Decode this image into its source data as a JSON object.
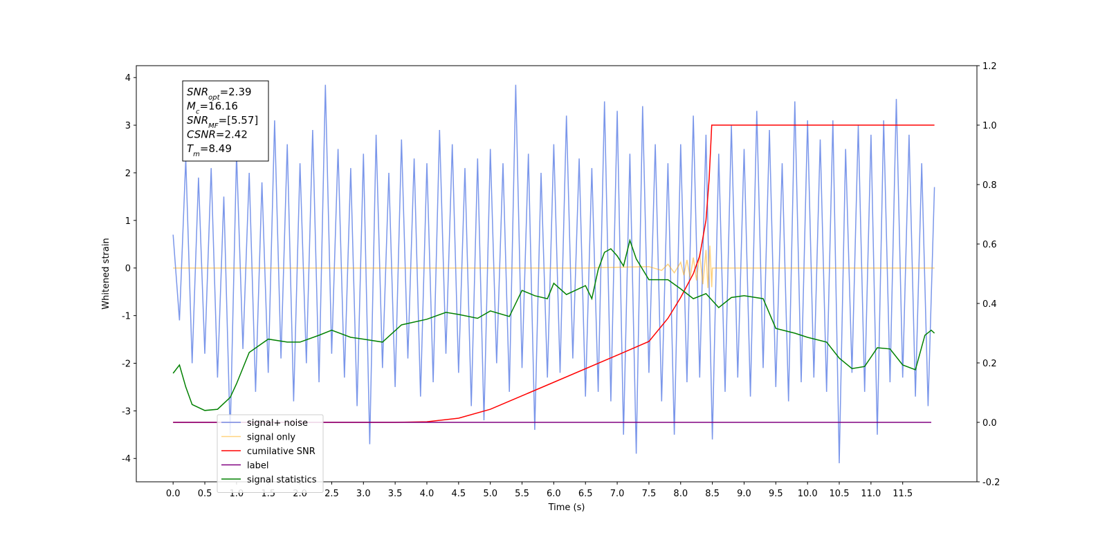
{
  "chart_data": {
    "type": "line",
    "xlabel": "Time (s)",
    "ylabel": "Whitened strain",
    "xlim": [
      -0.58,
      12.67
    ],
    "ylim": [
      -4.49,
      4.25
    ],
    "y2lim": [
      -0.2,
      1.2
    ],
    "xticks": [
      {
        "value": 0,
        "label": "0.0"
      },
      0.5,
      {
        "value": 1,
        "label": "1.0"
      },
      1.5,
      {
        "value": 2,
        "label": "2.0"
      },
      2.5,
      {
        "value": 3,
        "label": "3.0"
      },
      3.5,
      {
        "value": 4,
        "label": "4.0"
      },
      4.5,
      {
        "value": 5,
        "label": "5.0"
      },
      5.5,
      {
        "value": 6,
        "label": "6.0"
      },
      6.5,
      {
        "value": 7,
        "label": "7.0"
      },
      7.5,
      {
        "value": 8,
        "label": "8.0"
      },
      8.5,
      {
        "value": 9,
        "label": "9.0"
      },
      9.5,
      {
        "value": 10,
        "label": "10.0"
      },
      10.5,
      {
        "value": 11,
        "label": "11.0"
      },
      11.5
    ],
    "yticks": [
      -4,
      -3,
      -2,
      -1,
      0,
      1,
      2,
      3,
      4
    ],
    "y2ticks": [
      -0.2,
      {
        "value": 0,
        "label": "0.0"
      },
      0.2,
      0.4,
      0.6,
      0.8,
      {
        "value": 1,
        "label": "1.0"
      },
      1.2
    ],
    "legend": "lower left",
    "annotation": [
      {
        "base": "SNR",
        "sub": "opt",
        "text": "=2.39"
      },
      {
        "base": "M",
        "sub": "c",
        "text": "=16.16"
      },
      {
        "base": "SNR",
        "sub": "MF",
        "text": "=[5.57]"
      },
      {
        "base": "CSNR",
        "sub": "",
        "text": "=2.42"
      },
      {
        "base": "T",
        "sub": "m",
        "text": "=8.49"
      }
    ],
    "series": [
      {
        "name": "signal+ noise",
        "color": "#4169e1",
        "alpha": 0.7,
        "axis": "y",
        "x": [
          0,
          0.1,
          0.2,
          0.3,
          0.4,
          0.5,
          0.6,
          0.7,
          0.8,
          0.9,
          1,
          1.1,
          1.2,
          1.3,
          1.4,
          1.5,
          1.6,
          1.7,
          1.8,
          1.9,
          2,
          2.1,
          2.2,
          2.3,
          2.4,
          2.5,
          2.6,
          2.7,
          2.8,
          2.9,
          3,
          3.1,
          3.2,
          3.3,
          3.4,
          3.5,
          3.6,
          3.7,
          3.8,
          3.9,
          4,
          4.1,
          4.2,
          4.3,
          4.4,
          4.5,
          4.6,
          4.7,
          4.8,
          4.9,
          5,
          5.1,
          5.2,
          5.3,
          5.4,
          5.5,
          5.6,
          5.7,
          5.8,
          5.9,
          6,
          6.1,
          6.2,
          6.3,
          6.4,
          6.5,
          6.6,
          6.7,
          6.8,
          6.9,
          7,
          7.1,
          7.2,
          7.3,
          7.4,
          7.5,
          7.6,
          7.7,
          7.8,
          7.9,
          8,
          8.1,
          8.2,
          8.3,
          8.4,
          8.5,
          8.6,
          8.7,
          8.8,
          8.9,
          9,
          9.1,
          9.2,
          9.3,
          9.4,
          9.5,
          9.6,
          9.7,
          9.8,
          9.9,
          10,
          10.1,
          10.2,
          10.3,
          10.4,
          10.5,
          10.6,
          10.7,
          10.8,
          10.9,
          11,
          11.1,
          11.2,
          11.3,
          11.4,
          11.5,
          11.6,
          11.7,
          11.8,
          11.9,
          12
        ],
        "values": [
          0.7,
          -1.1,
          2.3,
          -2.0,
          1.9,
          -1.8,
          2.1,
          -2.3,
          1.5,
          -3.5,
          2.4,
          -1.7,
          2.0,
          -2.6,
          1.8,
          -2.2,
          3.1,
          -1.9,
          2.6,
          -2.8,
          2.2,
          -2.0,
          2.9,
          -2.4,
          3.85,
          -1.8,
          2.5,
          -2.3,
          2.1,
          -2.9,
          2.4,
          -3.7,
          2.8,
          -2.1,
          2.0,
          -2.5,
          2.7,
          -1.9,
          2.3,
          -2.7,
          2.2,
          -2.4,
          2.9,
          -1.8,
          2.6,
          -2.2,
          2.1,
          -2.9,
          2.3,
          -3.2,
          2.5,
          -2.0,
          2.2,
          -2.6,
          3.85,
          -2.1,
          2.4,
          -3.4,
          2.0,
          -2.3,
          2.6,
          -2.2,
          3.2,
          -1.9,
          2.3,
          -2.7,
          2.1,
          -2.6,
          3.5,
          -2.8,
          3.3,
          -3.5,
          2.4,
          -3.9,
          3.4,
          -2.2,
          2.6,
          -2.8,
          2.2,
          -3.5,
          2.6,
          -2.4,
          3.2,
          -2.3,
          2.8,
          -3.6,
          2.4,
          -2.6,
          3.0,
          -2.3,
          2.5,
          -2.7,
          3.3,
          -2.1,
          2.9,
          -2.5,
          2.2,
          -2.8,
          3.5,
          -2.4,
          3.1,
          -2.3,
          2.7,
          -2.6,
          3.1,
          -4.1,
          2.5,
          -2.2,
          3.0,
          -2.6,
          2.8,
          -3.5,
          3.1,
          -2.4,
          3.55,
          -2.3,
          2.8,
          -2.7,
          2.2,
          -2.9,
          1.7
        ]
      },
      {
        "name": "signal only",
        "color": "#ffa500",
        "alpha": 0.5,
        "axis": "y",
        "x": [
          0,
          6.5,
          7.5,
          7.7,
          7.8,
          7.9,
          8.0,
          8.05,
          8.1,
          8.15,
          8.2,
          8.25,
          8.3,
          8.35,
          8.4,
          8.43,
          8.46,
          8.49,
          8.5,
          12
        ],
        "values": [
          0,
          0,
          0.03,
          -0.05,
          0.08,
          -0.1,
          0.12,
          -0.15,
          0.17,
          -0.2,
          0.22,
          -0.26,
          0.3,
          -0.34,
          0.38,
          -0.42,
          0.47,
          -0.4,
          0,
          0
        ]
      },
      {
        "name": "cumilative SNR",
        "color": "#ff0000",
        "alpha": 1,
        "axis": "y2",
        "x": [
          0,
          3.5,
          4.0,
          4.5,
          5.0,
          6.0,
          7.0,
          7.5,
          7.8,
          8.0,
          8.2,
          8.3,
          8.4,
          8.45,
          8.49,
          8.5,
          12
        ],
        "values": [
          0,
          0,
          0.002,
          0.014,
          0.044,
          0.135,
          0.226,
          0.272,
          0.35,
          0.42,
          0.5,
          0.56,
          0.68,
          0.82,
          1.0,
          1.0,
          1.0
        ]
      },
      {
        "name": "label",
        "color": "#800080",
        "alpha": 1,
        "axis": "y2",
        "x": [
          0,
          11.95
        ],
        "values": [
          0,
          0
        ]
      },
      {
        "name": "signal statistics",
        "color": "#008000",
        "alpha": 1,
        "axis": "y2",
        "x": [
          0,
          0.1,
          0.2,
          0.3,
          0.5,
          0.7,
          0.9,
          1.0,
          1.2,
          1.5,
          1.8,
          2.0,
          2.3,
          2.5,
          2.8,
          3.0,
          3.3,
          3.6,
          4.0,
          4.3,
          4.5,
          4.8,
          5.0,
          5.3,
          5.5,
          5.7,
          5.9,
          6.0,
          6.2,
          6.5,
          6.6,
          6.7,
          6.8,
          6.9,
          7.0,
          7.1,
          7.2,
          7.3,
          7.5,
          7.8,
          8.0,
          8.2,
          8.4,
          8.6,
          8.8,
          9.0,
          9.3,
          9.5,
          9.8,
          10.0,
          10.3,
          10.5,
          10.7,
          10.9,
          11.1,
          11.3,
          11.5,
          11.7,
          11.85,
          11.95,
          12.0
        ],
        "values": [
          0.165,
          0.193,
          0.119,
          0.06,
          0.04,
          0.044,
          0.084,
          0.13,
          0.235,
          0.28,
          0.27,
          0.27,
          0.293,
          0.31,
          0.286,
          0.28,
          0.27,
          0.328,
          0.347,
          0.37,
          0.363,
          0.35,
          0.375,
          0.356,
          0.444,
          0.426,
          0.416,
          0.468,
          0.43,
          0.46,
          0.416,
          0.514,
          0.572,
          0.584,
          0.56,
          0.526,
          0.612,
          0.55,
          0.48,
          0.48,
          0.449,
          0.416,
          0.433,
          0.386,
          0.42,
          0.426,
          0.416,
          0.316,
          0.3,
          0.286,
          0.27,
          0.216,
          0.181,
          0.188,
          0.251,
          0.247,
          0.193,
          0.177,
          0.293,
          0.31,
          0.3
        ]
      }
    ]
  }
}
